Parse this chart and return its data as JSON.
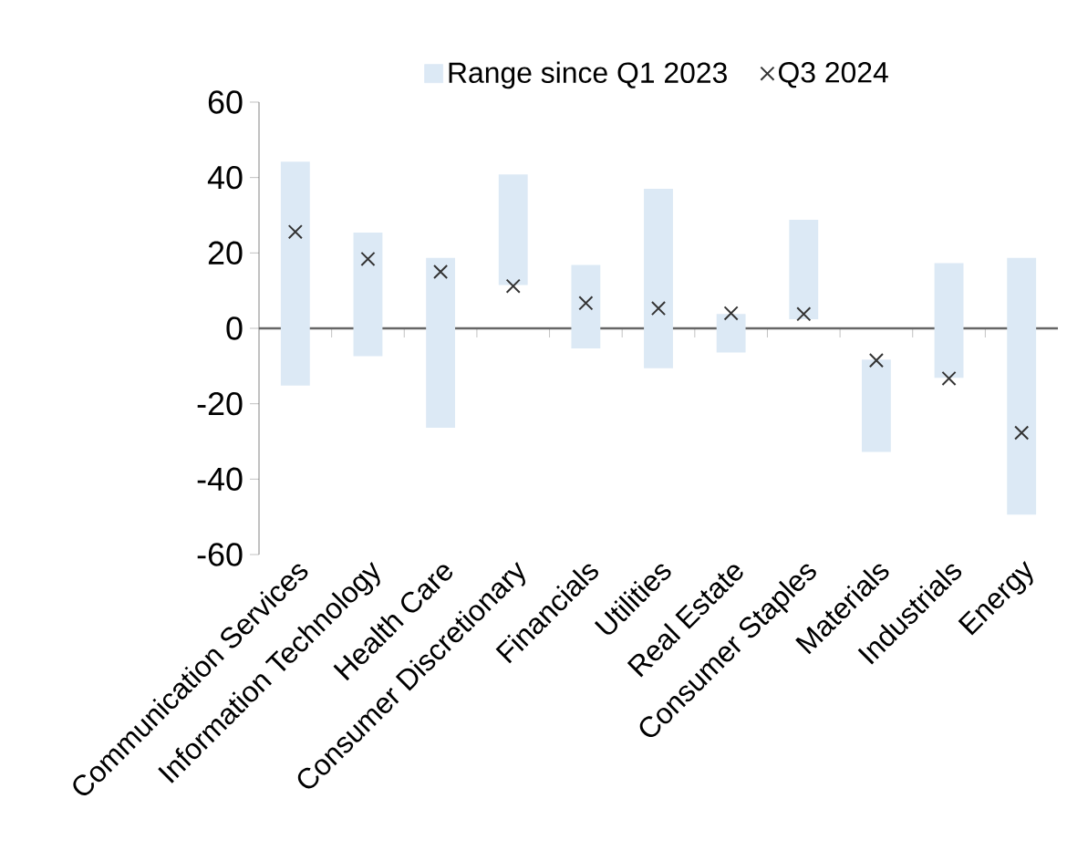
{
  "chart_data": {
    "type": "bar",
    "categories": [
      "Communication Services",
      "Information Technology",
      "Health Care",
      "Consumer Discretionary",
      "Financials",
      "Utilities",
      "Real Estate",
      "Consumer Staples",
      "Materials",
      "Industrials",
      "Energy"
    ],
    "series": [
      {
        "name": "Range since Q1 2023",
        "color": "#dce9f5",
        "base": [
          -15.2,
          -7.4,
          -26.4,
          11.5,
          -5.3,
          -10.6,
          -6.4,
          2.4,
          -32.8,
          -13.1,
          -49.4
        ],
        "values": [
          59.4,
          32.8,
          45.1,
          29.3,
          22.1,
          47.6,
          10.2,
          26.4,
          24.5,
          30.4,
          68.1
        ]
      },
      {
        "name": "Q3 2024",
        "type": "scatter",
        "color": "#333333",
        "marker": "cross",
        "x": [
          "Communication Services",
          "Information Technology",
          "Health Care",
          "Consumer Discretionary",
          "Financials",
          "Utilities",
          "Real Estate",
          "Consumer Staples",
          "Materials",
          "Industrials",
          "Energy"
        ],
        "values": [
          25.6,
          18.4,
          15.0,
          11.2,
          6.7,
          5.3,
          4.0,
          3.8,
          -8.5,
          -13.3,
          -27.7
        ]
      }
    ],
    "ylim": [
      -60,
      60
    ],
    "yticks": [
      -60,
      -40,
      -20,
      0,
      20,
      40,
      60
    ],
    "legend": "top"
  }
}
